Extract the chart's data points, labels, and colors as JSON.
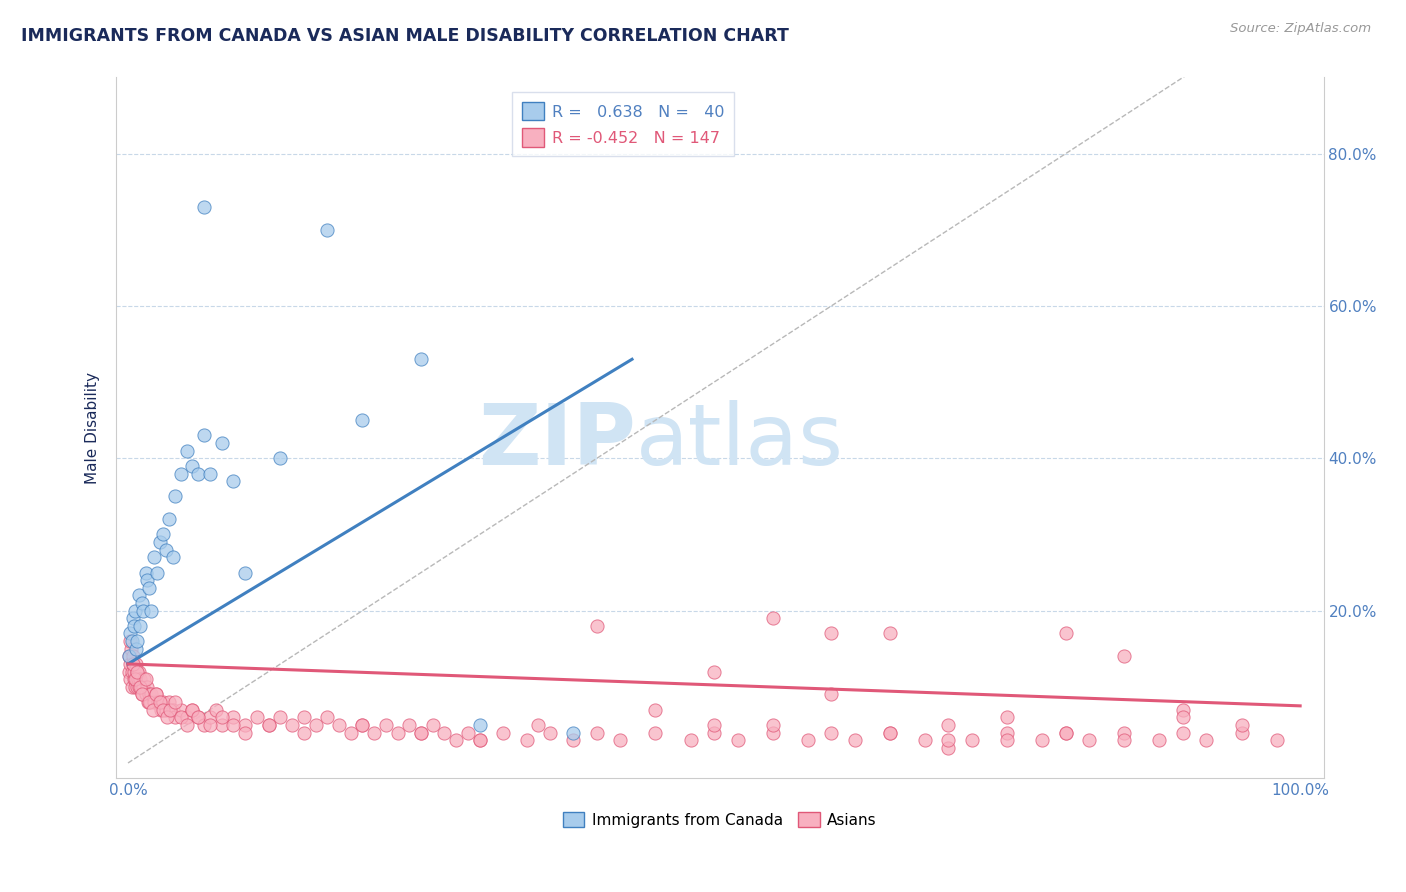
{
  "title": "IMMIGRANTS FROM CANADA VS ASIAN MALE DISABILITY CORRELATION CHART",
  "source_text": "Source: ZipAtlas.com",
  "ylabel": "Male Disability",
  "legend_labels": [
    "Immigrants from Canada",
    "Asians"
  ],
  "r_canada": 0.638,
  "n_canada": 40,
  "r_asian": -0.452,
  "n_asian": 147,
  "xlim": [
    -1.0,
    102.0
  ],
  "ylim": [
    -2.0,
    90.0
  ],
  "xticks": [
    0.0,
    100.0
  ],
  "yticks": [
    20.0,
    40.0,
    60.0,
    80.0
  ],
  "color_canada": "#a8ccec",
  "color_canada_line": "#4080c0",
  "color_asian": "#f8b0c0",
  "color_asian_line": "#e05878",
  "color_diagonal": "#b8b8b8",
  "background_color": "#ffffff",
  "grid_color": "#c8d8e8",
  "title_color": "#1a2a5a",
  "axis_label_color": "#1a2a5a",
  "tick_label_color": "#5080c0",
  "watermark_color": "#d0e4f4",
  "canada_x": [
    0.1,
    0.2,
    0.3,
    0.4,
    0.5,
    0.6,
    0.7,
    0.8,
    0.9,
    1.0,
    1.2,
    1.3,
    1.5,
    1.6,
    1.8,
    2.0,
    2.2,
    2.5,
    2.7,
    3.0,
    3.2,
    3.5,
    3.8,
    4.0,
    4.5,
    5.0,
    5.5,
    6.0,
    6.5,
    7.0,
    8.0,
    9.0,
    10.0,
    13.0,
    17.0,
    20.0,
    25.0,
    6.5,
    30.0,
    38.0
  ],
  "canada_y": [
    14.0,
    17.0,
    16.0,
    19.0,
    18.0,
    20.0,
    15.0,
    16.0,
    22.0,
    18.0,
    21.0,
    20.0,
    25.0,
    24.0,
    23.0,
    20.0,
    27.0,
    25.0,
    29.0,
    30.0,
    28.0,
    32.0,
    27.0,
    35.0,
    38.0,
    41.0,
    39.0,
    38.0,
    43.0,
    38.0,
    42.0,
    37.0,
    25.0,
    40.0,
    70.0,
    45.0,
    53.0,
    73.0,
    5.0,
    4.0
  ],
  "asian_x": [
    0.05,
    0.1,
    0.15,
    0.2,
    0.25,
    0.3,
    0.35,
    0.4,
    0.45,
    0.5,
    0.55,
    0.6,
    0.65,
    0.7,
    0.75,
    0.8,
    0.85,
    0.9,
    0.95,
    1.0,
    1.1,
    1.2,
    1.3,
    1.4,
    1.5,
    1.6,
    1.7,
    1.8,
    1.9,
    2.0,
    2.2,
    2.4,
    2.6,
    2.8,
    3.0,
    3.2,
    3.5,
    3.8,
    4.0,
    4.5,
    5.0,
    5.5,
    6.0,
    6.5,
    7.0,
    7.5,
    8.0,
    9.0,
    10.0,
    11.0,
    12.0,
    13.0,
    14.0,
    15.0,
    16.0,
    17.0,
    18.0,
    19.0,
    20.0,
    21.0,
    22.0,
    23.0,
    24.0,
    25.0,
    26.0,
    27.0,
    28.0,
    29.0,
    30.0,
    32.0,
    34.0,
    36.0,
    38.0,
    40.0,
    42.0,
    45.0,
    48.0,
    50.0,
    52.0,
    55.0,
    58.0,
    60.0,
    62.0,
    65.0,
    68.0,
    70.0,
    72.0,
    75.0,
    78.0,
    80.0,
    82.0,
    85.0,
    88.0,
    90.0,
    92.0,
    95.0,
    98.0,
    0.2,
    0.4,
    0.6,
    0.8,
    1.0,
    1.2,
    1.5,
    1.8,
    2.1,
    2.4,
    2.7,
    3.0,
    3.3,
    3.6,
    4.0,
    4.5,
    5.0,
    5.5,
    6.0,
    7.0,
    8.0,
    9.0,
    10.0,
    12.0,
    15.0,
    20.0,
    25.0,
    30.0,
    35.0,
    40.0,
    45.0,
    50.0,
    55.0,
    60.0,
    65.0,
    70.0,
    75.0,
    80.0,
    85.0,
    90.0,
    50.0,
    60.0,
    70.0,
    55.0,
    65.0,
    75.0,
    80.0,
    85.0,
    90.0,
    95.0
  ],
  "asian_y": [
    14.0,
    12.0,
    13.0,
    11.0,
    15.0,
    12.0,
    10.0,
    13.0,
    14.0,
    11.0,
    12.0,
    10.0,
    13.0,
    11.0,
    12.0,
    10.0,
    11.0,
    10.0,
    12.0,
    11.0,
    10.0,
    9.0,
    10.0,
    11.0,
    9.0,
    10.0,
    8.0,
    9.0,
    8.0,
    9.0,
    8.0,
    9.0,
    8.0,
    7.0,
    8.0,
    7.0,
    8.0,
    7.0,
    6.0,
    7.0,
    6.0,
    7.0,
    6.0,
    5.0,
    6.0,
    7.0,
    5.0,
    6.0,
    5.0,
    6.0,
    5.0,
    6.0,
    5.0,
    4.0,
    5.0,
    6.0,
    5.0,
    4.0,
    5.0,
    4.0,
    5.0,
    4.0,
    5.0,
    4.0,
    5.0,
    4.0,
    3.0,
    4.0,
    3.0,
    4.0,
    3.0,
    4.0,
    3.0,
    4.0,
    3.0,
    4.0,
    3.0,
    4.0,
    3.0,
    4.0,
    3.0,
    4.0,
    3.0,
    4.0,
    3.0,
    2.0,
    3.0,
    4.0,
    3.0,
    4.0,
    3.0,
    4.0,
    3.0,
    4.0,
    3.0,
    4.0,
    3.0,
    16.0,
    13.0,
    11.0,
    12.0,
    10.0,
    9.0,
    11.0,
    8.0,
    7.0,
    9.0,
    8.0,
    7.0,
    6.0,
    7.0,
    8.0,
    6.0,
    5.0,
    7.0,
    6.0,
    5.0,
    6.0,
    5.0,
    4.0,
    5.0,
    6.0,
    5.0,
    4.0,
    3.0,
    5.0,
    18.0,
    7.0,
    5.0,
    19.0,
    17.0,
    17.0,
    5.0,
    3.0,
    17.0,
    14.0,
    7.0,
    12.0,
    9.0,
    3.0,
    5.0,
    4.0,
    6.0,
    4.0,
    3.0,
    6.0,
    5.0
  ]
}
